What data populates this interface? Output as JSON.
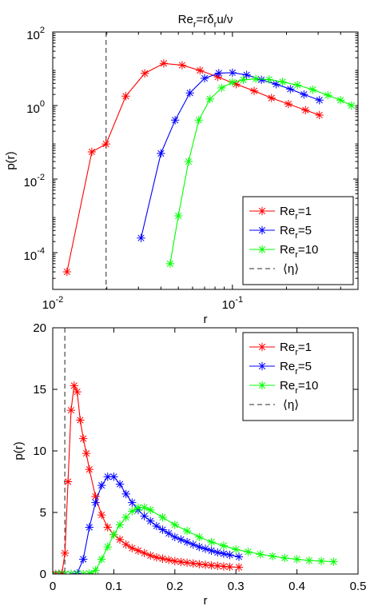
{
  "chart_data": [
    {
      "type": "line",
      "title": "Re_r=rδ_r u/ν",
      "title_parts": {
        "a": "Re",
        "b": "r",
        "c": "=rδ",
        "d": "r",
        "e": "u/ν"
      },
      "xlabel": "r",
      "ylabel": "p(r)",
      "xscale": "log",
      "yscale": "log",
      "xlim": [
        0.01,
        0.5
      ],
      "ylim": [
        1e-05,
        100
      ],
      "xticks": [
        {
          "value": 0.01,
          "base": "10",
          "exp": "-2"
        },
        {
          "value": 0.1,
          "base": "10",
          "exp": "-1"
        }
      ],
      "yticks": [
        {
          "value": 0.0001,
          "base": "10",
          "exp": "-4"
        },
        {
          "value": 0.01,
          "base": "10",
          "exp": "-2"
        },
        {
          "value": 1,
          "base": "10",
          "exp": "0"
        },
        {
          "value": 100,
          "base": "10",
          "exp": "2"
        }
      ],
      "grid": false,
      "legend_position": "bottom-right",
      "vline": {
        "x": 0.0198,
        "color": "#555555",
        "style": "dashed"
      },
      "series": [
        {
          "name": "Re_r=1",
          "label_main": "Re",
          "label_sub": "r",
          "label_tail": "=1",
          "color": "#ff0000",
          "x": [
            0.012,
            0.0165,
            0.0198,
            0.0255,
            0.0325,
            0.0415,
            0.0525,
            0.066,
            0.083,
            0.105,
            0.132,
            0.165,
            0.205,
            0.255,
            0.305
          ],
          "y": [
            3e-05,
            0.055,
            0.09,
            1.8,
            7.5,
            14,
            12.5,
            9,
            6,
            3.8,
            2.5,
            1.6,
            1.1,
            0.75,
            0.55
          ]
        },
        {
          "name": "Re_r=5",
          "label_main": "Re",
          "label_sub": "r",
          "label_tail": "=5",
          "color": "#0000ff",
          "x": [
            0.031,
            0.04,
            0.048,
            0.058,
            0.07,
            0.084,
            0.1,
            0.12,
            0.145,
            0.175,
            0.21,
            0.25,
            0.305
          ],
          "y": [
            0.00025,
            0.05,
            0.4,
            2.2,
            5.5,
            7.6,
            7.8,
            6.8,
            5.0,
            3.8,
            2.8,
            2.0,
            1.4
          ]
        },
        {
          "name": "Re_r=10",
          "label_main": "Re",
          "label_sub": "r",
          "label_tail": "=10",
          "color": "#00ff00",
          "x": [
            0.045,
            0.05,
            0.057,
            0.065,
            0.075,
            0.087,
            0.1,
            0.115,
            0.135,
            0.16,
            0.19,
            0.23,
            0.28,
            0.34,
            0.4,
            0.46
          ],
          "y": [
            5e-05,
            0.001,
            0.03,
            0.4,
            1.5,
            3.0,
            4.3,
            5.0,
            5.3,
            5.1,
            4.4,
            3.6,
            2.7,
            1.9,
            1.4,
            1.0
          ]
        }
      ],
      "vline_legend": {
        "label": "⟨η⟩"
      }
    },
    {
      "type": "line",
      "title": "",
      "xlabel": "r",
      "ylabel": "p(r)",
      "xscale": "linear",
      "yscale": "linear",
      "xlim": [
        0,
        0.5
      ],
      "ylim": [
        0,
        20
      ],
      "xticks": [
        {
          "value": 0,
          "label": "0"
        },
        {
          "value": 0.1,
          "label": "0.1"
        },
        {
          "value": 0.2,
          "label": "0.2"
        },
        {
          "value": 0.3,
          "label": "0.3"
        },
        {
          "value": 0.4,
          "label": "0.4"
        },
        {
          "value": 0.5,
          "label": "0.5"
        }
      ],
      "yticks": [
        {
          "value": 0,
          "label": "0"
        },
        {
          "value": 5,
          "label": "5"
        },
        {
          "value": 10,
          "label": "10"
        },
        {
          "value": 15,
          "label": "15"
        },
        {
          "value": 20,
          "label": "20"
        }
      ],
      "grid": false,
      "legend_position": "top-right",
      "vline": {
        "x": 0.0198,
        "color": "#555555",
        "style": "dashed"
      },
      "series": [
        {
          "name": "Re_r=1",
          "label_main": "Re",
          "label_sub": "r",
          "label_tail": "=1",
          "color": "#ff0000",
          "x": [
            0.0,
            0.005,
            0.01,
            0.015,
            0.02,
            0.025,
            0.03,
            0.035,
            0.04,
            0.045,
            0.05,
            0.055,
            0.06,
            0.07,
            0.08,
            0.09,
            0.1,
            0.11,
            0.12,
            0.13,
            0.14,
            0.15,
            0.16,
            0.17,
            0.18,
            0.19,
            0.2,
            0.21,
            0.22,
            0.23,
            0.24,
            0.25,
            0.26,
            0.27,
            0.28,
            0.29,
            0.305
          ],
          "y": [
            0.0,
            0.0,
            0.0,
            0.05,
            1.7,
            7.5,
            13.3,
            15.3,
            14.8,
            12.5,
            11.0,
            9.8,
            8.5,
            6.3,
            4.8,
            3.8,
            3.2,
            2.8,
            2.4,
            2.1,
            1.9,
            1.7,
            1.5,
            1.35,
            1.25,
            1.15,
            1.05,
            0.98,
            0.92,
            0.86,
            0.8,
            0.75,
            0.7,
            0.66,
            0.62,
            0.58,
            0.55
          ]
        },
        {
          "name": "Re_r=5",
          "label_main": "Re",
          "label_sub": "r",
          "label_tail": "=5",
          "color": "#0000ff",
          "x": [
            0.0,
            0.01,
            0.02,
            0.03,
            0.04,
            0.05,
            0.06,
            0.07,
            0.08,
            0.09,
            0.1,
            0.11,
            0.12,
            0.13,
            0.14,
            0.15,
            0.16,
            0.17,
            0.18,
            0.19,
            0.2,
            0.21,
            0.22,
            0.23,
            0.24,
            0.25,
            0.26,
            0.27,
            0.28,
            0.29,
            0.305
          ],
          "y": [
            0.0,
            0.0,
            0.0,
            0.0,
            0.05,
            1.2,
            3.8,
            5.8,
            7.2,
            7.9,
            7.9,
            7.3,
            6.5,
            5.8,
            5.2,
            4.7,
            4.3,
            3.9,
            3.6,
            3.3,
            3.0,
            2.8,
            2.6,
            2.4,
            2.2,
            2.05,
            1.9,
            1.75,
            1.65,
            1.55,
            1.4
          ]
        },
        {
          "name": "Re_r=10",
          "label_main": "Re",
          "label_sub": "r",
          "label_tail": "=10",
          "color": "#00ff00",
          "x": [
            0.0,
            0.01,
            0.02,
            0.03,
            0.04,
            0.05,
            0.06,
            0.07,
            0.08,
            0.09,
            0.1,
            0.11,
            0.12,
            0.13,
            0.14,
            0.15,
            0.16,
            0.18,
            0.2,
            0.22,
            0.24,
            0.26,
            0.28,
            0.3,
            0.32,
            0.34,
            0.36,
            0.38,
            0.4,
            0.42,
            0.44,
            0.46
          ],
          "y": [
            0.0,
            0.0,
            0.0,
            0.0,
            0.0,
            0.0,
            0.05,
            0.3,
            1.2,
            2.2,
            3.2,
            4.0,
            4.6,
            5.1,
            5.4,
            5.4,
            5.2,
            4.6,
            4.0,
            3.5,
            3.0,
            2.6,
            2.3,
            2.0,
            1.8,
            1.6,
            1.45,
            1.3,
            1.2,
            1.1,
            1.05,
            1.0
          ]
        }
      ],
      "vline_legend": {
        "label": "⟨η⟩"
      }
    }
  ]
}
